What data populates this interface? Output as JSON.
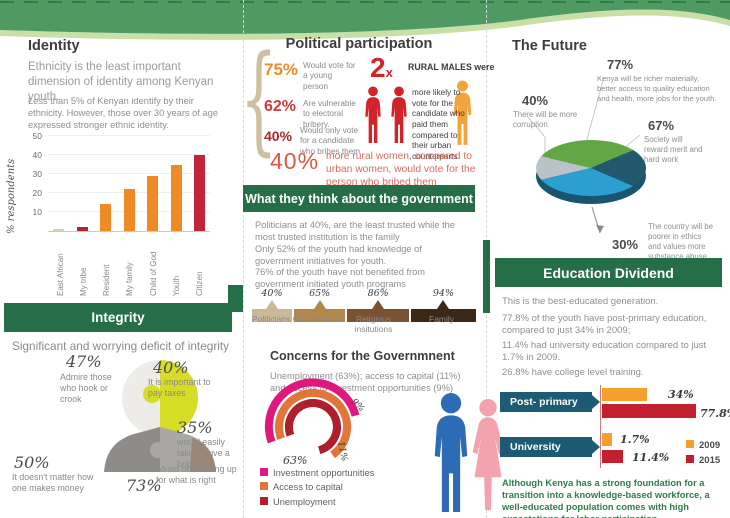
{
  "colors": {
    "header_green": "#256e47",
    "banner_green": "#4f9a62",
    "banner_light": "#c8dfa5",
    "orange": "#f08a25",
    "crimson": "#c02637",
    "teal_box": "#1d5a73",
    "footnote_green": "#2e7d4a",
    "man_blue": "#2d6cb5",
    "woman_pink": "#f2a3ad",
    "brace_tan": "#cdbf9f"
  },
  "identity": {
    "title": "Identity",
    "lead": "Ethnicity is the least important dimension of identity among Kenyan youth.",
    "body": "Less than 5% of Kenyan identify by their ethnicity.  However, those over 30 years of age expressed stronger ethnic identity."
  },
  "integrity": {
    "header": "Integrity",
    "subtitle": "Significant and worrying deficit of integrity",
    "stats": [
      {
        "value": "47%",
        "label": "Admire those who hook or crook"
      },
      {
        "value": "40%",
        "label": "It is important to pay taxes"
      },
      {
        "value": "35%",
        "label": "would easily take or give a bribe"
      },
      {
        "value": "50%",
        "label": "It doesn't matter how one makes money"
      },
      {
        "value": "73%",
        "label": "Afraid of standing up for what is right"
      }
    ]
  },
  "political": {
    "title": "Political participation",
    "stats": [
      {
        "value": "75%",
        "label": "Would vote for a young person",
        "color": "#ef8b2a"
      },
      {
        "value": "62%",
        "label": "Are vulnerable to electoral bribery.",
        "color": "#cf3a3c"
      },
      {
        "value": "40%",
        "label": "Would only vote for a candidate who bribes them",
        "color": "#a8262b"
      }
    ],
    "multiplier": "2",
    "multiplier_x": "x",
    "rural_males": "RURAL MALES were",
    "rural_text": "more likely to vote for the candidate who paid them compared to their urban counterparts",
    "women_value": "40%",
    "women_text": "more rural women, compared to urban women, would vote for the person who bribed them"
  },
  "government": {
    "header": "What they think about the government",
    "paragraphs": [
      "Politicians at 40%, are the least trusted while the most trusted institution is the family",
      "Only 52% of the youth had knowledge of government initiatives for youth.",
      "76% of the youth have not benefited from government initiated youth programs"
    ]
  },
  "concerns": {
    "title": "Concerns for the Governmnent",
    "subtitle": "Unemployment (63%); access to capital (11%) and access to investment opportunities (9%)",
    "legend": [
      {
        "label": "Investment opportunities",
        "color": "#e0187e"
      },
      {
        "label": "Access to capital",
        "color": "#e2763a"
      },
      {
        "label": "Unemployment",
        "color": "#ae1e2c"
      }
    ]
  },
  "future": {
    "title": "The Future",
    "callouts": [
      {
        "value": "77%",
        "text": "Kenya will be richer materially, better access to quality education and health, more jobs for the youth."
      },
      {
        "value": "40%",
        "text": "There will be more corruption"
      },
      {
        "value": "67%",
        "text": "Society will reward merit and hard work"
      },
      {
        "value": "30%",
        "text": "The country will be poorer in ethics and values more substance abuse"
      }
    ]
  },
  "education": {
    "header": "Education Dividend",
    "paragraphs": [
      "This is the best-educated generation.",
      "77.8% of the youth  have  post-primary education, compared to just 34% in 2009;",
      "11.4% had university education compared to just 1.7% in 2009.",
      "26.8% have college level training."
    ],
    "footnote": "Although Kenya has a strong foundation for a transition into a knowledge-based workforce, a well-educated population comes with high expectations for labor participation."
  },
  "chart_data": [
    {
      "type": "bar",
      "title": "Identity — % respondents",
      "categories": [
        "East African",
        "My tribe",
        "Resident",
        "My family",
        "Child of God",
        "Youth",
        "Citizen"
      ],
      "values": [
        1,
        2,
        14,
        22,
        29,
        35,
        40
      ],
      "bar_colors": [
        "#d8cfb8",
        "#b02431",
        "#f08a25",
        "#f08a25",
        "#f08a25",
        "#f08a25",
        "#c02637"
      ],
      "ylabel": "% respondents",
      "ylim": [
        0,
        50
      ],
      "yticks": [
        10,
        20,
        30,
        40,
        50
      ],
      "grid": true,
      "legend_position": "none"
    },
    {
      "type": "bar",
      "title": "Trust in institutions",
      "categories": [
        "Politicians",
        "Government",
        "Religious insitutions",
        "Family"
      ],
      "values": [
        40,
        65,
        86,
        94
      ],
      "labels": [
        "40%",
        "65%",
        "86%",
        "94%"
      ],
      "colors": [
        "#c9b996",
        "#b1874c",
        "#7c5330",
        "#3d2817"
      ]
    },
    {
      "type": "pie",
      "title": "Concerns for the Governmnent",
      "categories": [
        "Unemployment",
        "Access to capital",
        "Investment opportunities"
      ],
      "values": [
        63,
        11,
        9
      ],
      "labels": [
        "63%",
        "11%",
        "9%"
      ],
      "colors": [
        "#ae1e2c",
        "#e2763a",
        "#e0187e"
      ]
    },
    {
      "type": "pie",
      "title": "The Future",
      "categories": [
        "Richer materially (77%)",
        "More corruption (40%)",
        "Reward merit (67%)",
        "Poorer in ethics (30%)"
      ],
      "values": [
        77,
        40,
        67,
        30
      ],
      "colors": [
        "#62a744",
        "#b9c2c6",
        "#24586e",
        "#2a9fd0"
      ]
    },
    {
      "type": "bar",
      "title": "Education Dividend",
      "categories": [
        "Post- primary",
        "University"
      ],
      "series": [
        {
          "name": "2009",
          "values": [
            34,
            1.7
          ],
          "labels": [
            "34%",
            "1.7%"
          ],
          "color": "#f5a02c"
        },
        {
          "name": "2015",
          "values": [
            77.8,
            11.4
          ],
          "labels": [
            "77.8%",
            "11.4%"
          ],
          "color": "#c2202e"
        }
      ],
      "legend_position": "right"
    }
  ]
}
